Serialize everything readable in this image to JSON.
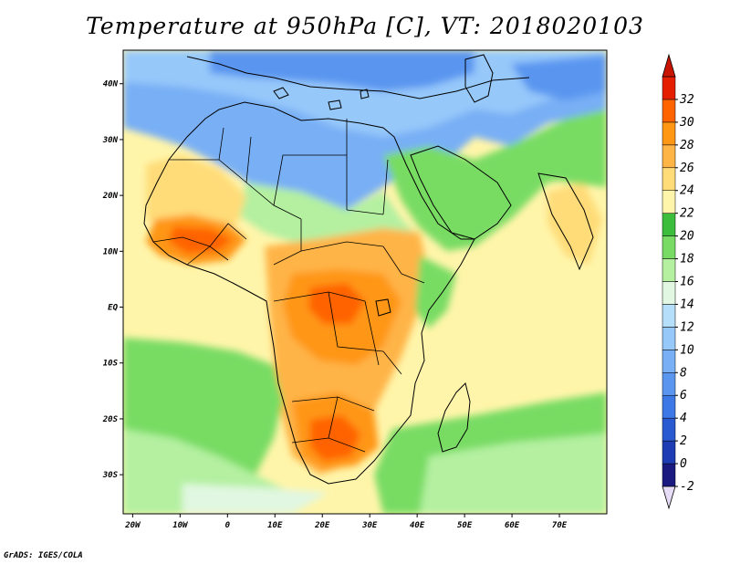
{
  "title": "Temperature at 950hPa [C], VT: 2018020103",
  "footer": "GrADS: IGES/COLA",
  "chart_data": {
    "type": "heatmap",
    "variable": "Temperature at 950hPa",
    "units": "C",
    "valid_time": "2018020103",
    "xlim": [
      -22,
      80
    ],
    "ylim": [
      -37,
      46
    ],
    "x_ticks": [
      {
        "value": -20,
        "label": "20W"
      },
      {
        "value": -10,
        "label": "10W"
      },
      {
        "value": 0,
        "label": "0"
      },
      {
        "value": 10,
        "label": "10E"
      },
      {
        "value": 20,
        "label": "20E"
      },
      {
        "value": 30,
        "label": "30E"
      },
      {
        "value": 40,
        "label": "40E"
      },
      {
        "value": 50,
        "label": "50E"
      },
      {
        "value": 60,
        "label": "60E"
      },
      {
        "value": 70,
        "label": "70E"
      }
    ],
    "y_ticks": [
      {
        "value": 40,
        "label": "40N"
      },
      {
        "value": 30,
        "label": "30N"
      },
      {
        "value": 20,
        "label": "20N"
      },
      {
        "value": 10,
        "label": "10N"
      },
      {
        "value": 0,
        "label": "EQ"
      },
      {
        "value": -10,
        "label": "10S"
      },
      {
        "value": -20,
        "label": "20S"
      },
      {
        "value": -30,
        "label": "30S"
      }
    ],
    "colorbar": {
      "levels": [
        "-2",
        "0",
        "2",
        "4",
        "6",
        "8",
        "10",
        "12",
        "14",
        "16",
        "18",
        "20",
        "22",
        "24",
        "26",
        "28",
        "30",
        "32"
      ],
      "colors": [
        "#1a1a80",
        "#1e3cb4",
        "#2a5ad2",
        "#3c78e6",
        "#5a96f0",
        "#78aff5",
        "#96c8fa",
        "#b4defa",
        "#e1f7e1",
        "#b4f0a0",
        "#78dc64",
        "#3cbe3c",
        "#fff5aa",
        "#ffdc78",
        "#ffb446",
        "#ff9614",
        "#ff6400",
        "#e61e00"
      ],
      "under_color": "#e6dcf5",
      "over_color": "#c81400"
    }
  }
}
